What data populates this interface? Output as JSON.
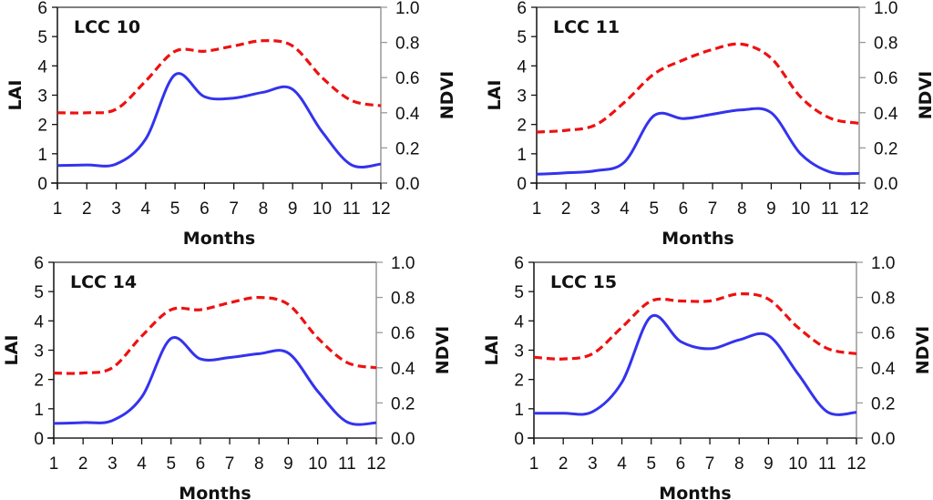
{
  "chart_data": [
    {
      "type": "line",
      "title": "LCC 10",
      "xlabel": "Months",
      "ylabel": "LAI",
      "y2label": "NDVI",
      "x": [
        1,
        2,
        3,
        4,
        5,
        6,
        7,
        8,
        9,
        10,
        11,
        12
      ],
      "xticks": [
        "1",
        "2",
        "3",
        "4",
        "5",
        "6",
        "7",
        "8",
        "9",
        "10",
        "11",
        "12"
      ],
      "ylim": [
        0,
        6
      ],
      "yticks": [
        "0",
        "1",
        "2",
        "3",
        "4",
        "5",
        "6"
      ],
      "y2lim": [
        0.0,
        1.0
      ],
      "y2ticks": [
        "0.0",
        "0.2",
        "0.4",
        "0.6",
        "0.8",
        "1.0"
      ],
      "grid": false,
      "series": [
        {
          "name": "LAI",
          "axis": "left",
          "style": "solid",
          "color": "#3333ee",
          "values": [
            0.6,
            0.62,
            0.65,
            1.5,
            3.7,
            2.95,
            2.9,
            3.1,
            3.2,
            1.75,
            0.62,
            0.65
          ]
        },
        {
          "name": "NDVI",
          "axis": "right",
          "style": "dashed",
          "color": "#ee1111",
          "values": [
            0.4,
            0.4,
            0.42,
            0.58,
            0.75,
            0.75,
            0.78,
            0.81,
            0.78,
            0.6,
            0.47,
            0.44
          ]
        }
      ]
    },
    {
      "type": "line",
      "title": "LCC 11",
      "xlabel": "Months",
      "ylabel": "LAI",
      "y2label": "NDVI",
      "x": [
        1,
        2,
        3,
        4,
        5,
        6,
        7,
        8,
        9,
        10,
        11,
        12
      ],
      "xticks": [
        "1",
        "2",
        "3",
        "4",
        "5",
        "6",
        "7",
        "8",
        "9",
        "10",
        "11",
        "12"
      ],
      "ylim": [
        0,
        6
      ],
      "yticks": [
        "0",
        "1",
        "2",
        "3",
        "4",
        "5",
        "6"
      ],
      "y2lim": [
        0.0,
        1.0
      ],
      "y2ticks": [
        "0.0",
        "0.2",
        "0.4",
        "0.6",
        "0.8",
        "1.0"
      ],
      "grid": false,
      "series": [
        {
          "name": "LAI",
          "axis": "left",
          "style": "solid",
          "color": "#3333ee",
          "values": [
            0.3,
            0.35,
            0.42,
            0.72,
            2.3,
            2.2,
            2.35,
            2.5,
            2.4,
            1.0,
            0.38,
            0.33
          ]
        },
        {
          "name": "NDVI",
          "axis": "right",
          "style": "dashed",
          "color": "#ee1111",
          "values": [
            0.29,
            0.3,
            0.33,
            0.46,
            0.62,
            0.7,
            0.76,
            0.79,
            0.71,
            0.49,
            0.37,
            0.34
          ]
        }
      ]
    },
    {
      "type": "line",
      "title": "LCC 14",
      "xlabel": "Months",
      "ylabel": "LAI",
      "y2label": "NDVI",
      "x": [
        1,
        2,
        3,
        4,
        5,
        6,
        7,
        8,
        9,
        10,
        11,
        12
      ],
      "xticks": [
        "1",
        "2",
        "3",
        "4",
        "5",
        "6",
        "7",
        "8",
        "9",
        "10",
        "11",
        "12"
      ],
      "ylim": [
        0,
        6
      ],
      "yticks": [
        "0",
        "1",
        "2",
        "3",
        "4",
        "5",
        "6"
      ],
      "y2lim": [
        0.0,
        1.0
      ],
      "y2ticks": [
        "0.0",
        "0.2",
        "0.4",
        "0.6",
        "0.8",
        "1.0"
      ],
      "grid": false,
      "series": [
        {
          "name": "LAI",
          "axis": "left",
          "style": "solid",
          "color": "#3333ee",
          "values": [
            0.5,
            0.53,
            0.6,
            1.4,
            3.4,
            2.7,
            2.75,
            2.88,
            2.9,
            1.6,
            0.55,
            0.52
          ]
        },
        {
          "name": "NDVI",
          "axis": "right",
          "style": "dashed",
          "color": "#ee1111",
          "values": [
            0.37,
            0.37,
            0.4,
            0.58,
            0.73,
            0.73,
            0.77,
            0.8,
            0.76,
            0.57,
            0.43,
            0.4
          ]
        }
      ]
    },
    {
      "type": "line",
      "title": "LCC 15",
      "xlabel": "Months",
      "ylabel": "LAI",
      "y2label": "NDVI",
      "x": [
        1,
        2,
        3,
        4,
        5,
        6,
        7,
        8,
        9,
        10,
        11,
        12
      ],
      "xticks": [
        "1",
        "2",
        "3",
        "4",
        "5",
        "6",
        "7",
        "8",
        "9",
        "10",
        "11",
        "12"
      ],
      "ylim": [
        0,
        6
      ],
      "yticks": [
        "0",
        "1",
        "2",
        "3",
        "4",
        "5",
        "6"
      ],
      "y2lim": [
        0.0,
        1.0
      ],
      "y2ticks": [
        "0.0",
        "0.2",
        "0.4",
        "0.6",
        "0.8",
        "1.0"
      ],
      "grid": false,
      "series": [
        {
          "name": "LAI",
          "axis": "left",
          "style": "solid",
          "color": "#3333ee",
          "values": [
            0.85,
            0.85,
            0.9,
            1.9,
            4.15,
            3.3,
            3.05,
            3.35,
            3.5,
            2.2,
            0.9,
            0.88
          ]
        },
        {
          "name": "NDVI",
          "axis": "right",
          "style": "dashed",
          "color": "#ee1111",
          "values": [
            0.46,
            0.45,
            0.48,
            0.63,
            0.78,
            0.78,
            0.78,
            0.82,
            0.79,
            0.63,
            0.51,
            0.48
          ]
        }
      ]
    }
  ]
}
